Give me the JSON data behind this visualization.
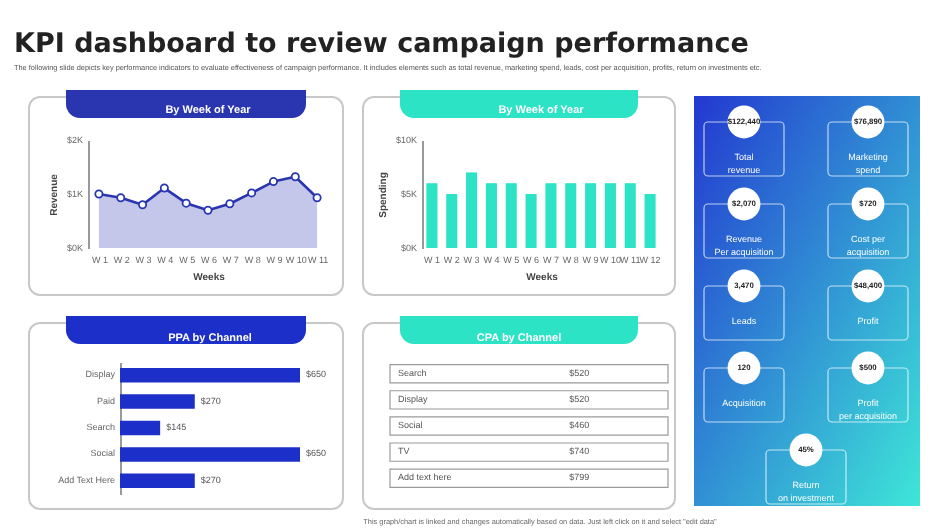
{
  "chart_data": [
    {
      "type": "other",
      "title": "KPI dashboard to review campaign performance",
      "subtitle": "The following slide depicts key performance indicators to evaluate effectiveness of campaign performance. It includes elements such as total revenue, marketing spend, leads, cost per acquisition, profits, return on investments etc.",
      "annotations": [
        "This graph/chart is linked and changes automatically based on data. Just left click on it and select \"edit data\""
      ]
    },
    {
      "type": "area",
      "title": "By Week of Year",
      "xlabel": "Weeks",
      "ylabel": "Revenue",
      "categories": [
        "W 1",
        "W 2",
        "W 3",
        "W 4",
        "W 5",
        "W 6",
        "W 7",
        "W 8",
        "W 9",
        "W 10",
        "W 11"
      ],
      "series": [
        {
          "color": "#2a36b0",
          "values": [
            1.0,
            0.93,
            0.8,
            1.11,
            0.83,
            0.7,
            0.82,
            1.02,
            1.23,
            1.32,
            0.93
          ]
        }
      ],
      "ylim": [
        0,
        2
      ],
      "yticks": [
        {
          "value": 0,
          "label": "$0K"
        },
        {
          "value": 1,
          "label": "$1K"
        },
        {
          "value": 2,
          "label": "$2K"
        }
      ],
      "marker": "circle",
      "line_style": "solid"
    },
    {
      "type": "bar",
      "title": "By Week of Year",
      "xlabel": "Weeks",
      "ylabel": "Spending",
      "categories": [
        "W 1",
        "W 2",
        "W 3",
        "W 4",
        "W 5",
        "W 6",
        "W 7",
        "W 8",
        "W 9",
        "W 10",
        "W 11",
        "W 12"
      ],
      "series": [
        {
          "color": "#2de3c5",
          "values": [
            6,
            5,
            7,
            6,
            6,
            5,
            6,
            6,
            6,
            6,
            6,
            5
          ]
        }
      ],
      "ylim": [
        0,
        10
      ],
      "yticks": [
        {
          "value": 0,
          "label": "$0K"
        },
        {
          "value": 5,
          "label": "$5K"
        },
        {
          "value": 10,
          "label": "$10K"
        }
      ]
    },
    {
      "type": "bar",
      "orientation": "horizontal",
      "title": "PPA by Channel",
      "categories": [
        "Display",
        "Paid",
        "Search",
        "Social",
        "Add Text Here"
      ],
      "series": [
        {
          "color": "#1d2fc9",
          "values": [
            650,
            270,
            145,
            650,
            270
          ],
          "value_labels": [
            "$650",
            "$270",
            "$145",
            "$650",
            "$270"
          ]
        }
      ]
    },
    {
      "type": "other",
      "title": "CPA by Channel",
      "categories": [
        "Search",
        "Display",
        "Social",
        "TV",
        "Add text here"
      ],
      "value_labels": [
        "$520",
        "$520",
        "$460",
        "$740",
        "$799"
      ]
    },
    {
      "type": "other",
      "categories": [
        "Total\nrevenue",
        "Marketing\nspend",
        "Revenue\nPer acquisition",
        "Cost per\nacquisition",
        "Leads",
        "Profit",
        "Acquisition",
        "Profit\nper acquisition",
        "Return\non investment"
      ],
      "value_labels": [
        "$122,440",
        "$76,890",
        "$2,070",
        "$720",
        "3,470",
        "$48,400",
        "120",
        "$500",
        "45%"
      ]
    }
  ]
}
